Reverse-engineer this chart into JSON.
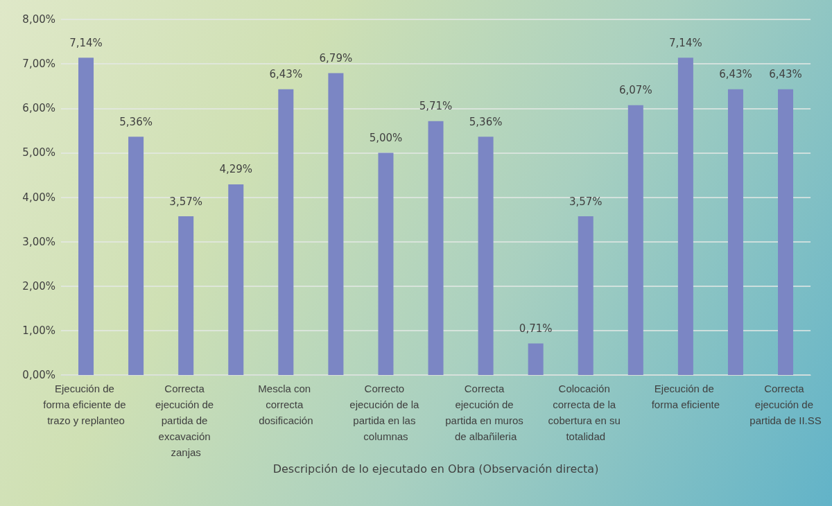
{
  "chart_data": {
    "type": "bar",
    "xlabel": "Descripción de lo ejecutado en Obra (Observación directa)",
    "categories": [
      "Ejecución de forma eficiente de trazo y replanteo",
      null,
      "Correcta ejecución de partida de excavación zanjas",
      null,
      "Mescla con correcta dosificación",
      null,
      "Correcto ejecución de la partida en las columnas",
      null,
      "Correcta ejecución de partida en muros de albañileria",
      null,
      "Colocación correcta de la cobertura en su totalidad",
      null,
      "Ejecución de forma eficiente",
      null,
      "Correcta ejecución de partida de II.SS"
    ],
    "values": [
      7.14,
      5.36,
      3.57,
      4.29,
      6.43,
      6.79,
      5.0,
      5.71,
      5.36,
      0.71,
      3.57,
      6.07,
      7.14,
      6.43,
      6.43
    ],
    "value_labels": [
      "7,14%",
      "5,36%",
      "3,57%",
      "4,29%",
      "6,43%",
      "6,79%",
      "5,00%",
      "5,71%",
      "5,36%",
      "0,71%",
      "3,57%",
      "6,07%",
      "7,14%",
      "6,43%",
      "6,43%"
    ],
    "color": "#7b86c4",
    "ylim": [
      0,
      8
    ],
    "yticks": [
      {
        "value": 0,
        "label": "0,00%"
      },
      {
        "value": 1,
        "label": "1,00%"
      },
      {
        "value": 2,
        "label": "2,00%"
      },
      {
        "value": 3,
        "label": "3,00%"
      },
      {
        "value": 4,
        "label": "4,00%"
      },
      {
        "value": 5,
        "label": "5,00%"
      },
      {
        "value": 6,
        "label": "6,00%"
      },
      {
        "value": 7,
        "label": "7,00%"
      },
      {
        "value": 8,
        "label": "8,00%"
      }
    ],
    "grid": "y"
  }
}
